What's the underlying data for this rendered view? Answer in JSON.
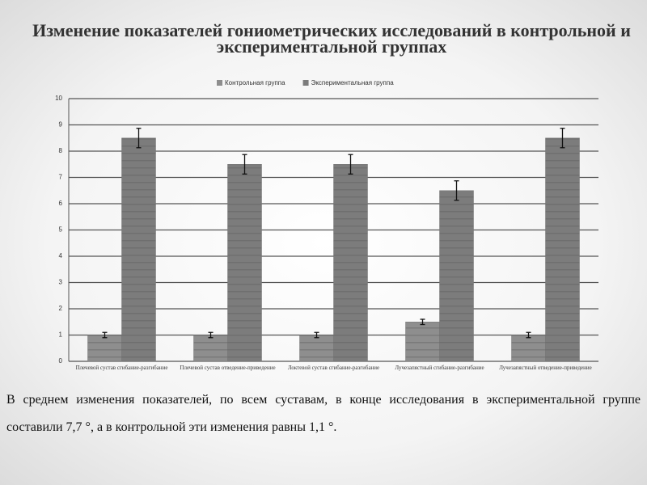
{
  "chart_data": {
    "type": "bar",
    "title": "Изменение показателей гониометрических исследований в контрольной и экспериментальной группах",
    "categories": [
      "Плечевой сустав сгибание-разгибание",
      "Плечевой сустав отведение-приведение",
      "Локтевой сустав сгибание-разгибание",
      "Лучезапястный сгибание-разгибание",
      "Лучезапястный отведение-приведение"
    ],
    "series": [
      {
        "name": "Контрольная группа",
        "color": "#8e8e8e",
        "values": [
          1,
          1,
          1,
          1.5,
          1
        ],
        "errors": [
          0.1,
          0.1,
          0.1,
          0.1,
          0.1
        ]
      },
      {
        "name": "Экспериментальная группа",
        "color": "#7c7c7c",
        "values": [
          8.5,
          7.5,
          7.5,
          6.5,
          8.5
        ],
        "errors": [
          0.37,
          0.37,
          0.37,
          0.37,
          0.37
        ]
      }
    ],
    "ylim": [
      0,
      10
    ],
    "yticks": [
      0,
      1,
      2,
      3,
      4,
      5,
      6,
      7,
      8,
      9,
      10
    ],
    "grid": true,
    "legend": "top"
  },
  "caption": "В среднем изменения показателей, по всем суставам, в конце  исследования в экспериментальной группе составили 7,7 °, а в контрольной эти изменения равны 1,1 °."
}
